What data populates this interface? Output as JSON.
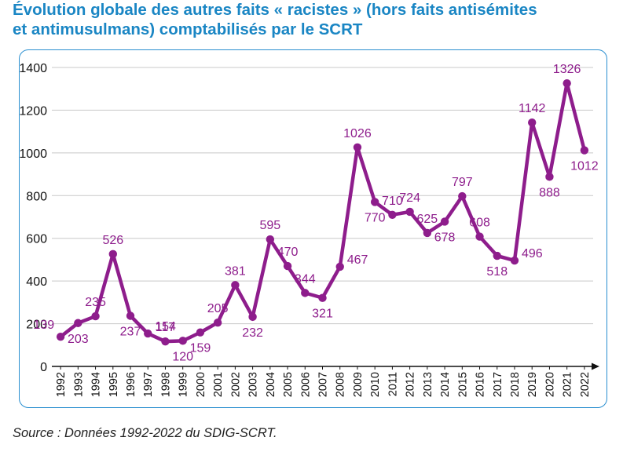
{
  "title": {
    "line1": "Évolution globale des autres faits « racistes » (hors faits antisémites",
    "line2": "et antimusulmans) comptabilisés par le SCRT"
  },
  "source": "Source : Données 1992-2022 du SDIG-SCRT.",
  "colors": {
    "title": "#1a86c4",
    "series": "#8e1d8c",
    "frame": "#2a8fd0",
    "grid": "#c8c8c8"
  },
  "chart_data": {
    "type": "line",
    "title": "Évolution globale des autres faits « racistes » (hors faits antisémites et antimusulmans) comptabilisés par le SCRT",
    "xlabel": "",
    "ylabel": "",
    "ylim": [
      0,
      1400
    ],
    "yticks": [
      0,
      200,
      400,
      600,
      800,
      1000,
      1200,
      1400
    ],
    "grid": true,
    "legend": "none",
    "x": [
      "1992",
      "1993",
      "1994",
      "1995",
      "1996",
      "1997",
      "1998",
      "1999",
      "2000",
      "2001",
      "2002",
      "2003",
      "2004",
      "2005",
      "2006",
      "2007",
      "2008",
      "2009",
      "2010",
      "2011",
      "2012",
      "2013",
      "2014",
      "2015",
      "2016",
      "2017",
      "2018",
      "2019",
      "2020",
      "2021",
      "2022"
    ],
    "series": [
      {
        "values": [
          139,
          203,
          235,
          526,
          237,
          154,
          117,
          120,
          159,
          205,
          381,
          232,
          595,
          470,
          344,
          321,
          467,
          1026,
          770,
          710,
          724,
          625,
          678,
          797,
          608,
          518,
          496,
          1142,
          888,
          1326,
          1012
        ]
      }
    ],
    "label_placement": [
      "left",
      "below",
      "above",
      "above",
      "below",
      "right",
      "above",
      "below",
      "below",
      "above",
      "above",
      "below",
      "above",
      "above",
      "above",
      "below",
      "right",
      "above",
      "below",
      "above",
      "above",
      "above",
      "below",
      "above",
      "above",
      "below",
      "right",
      "above",
      "below",
      "above",
      "below"
    ]
  }
}
